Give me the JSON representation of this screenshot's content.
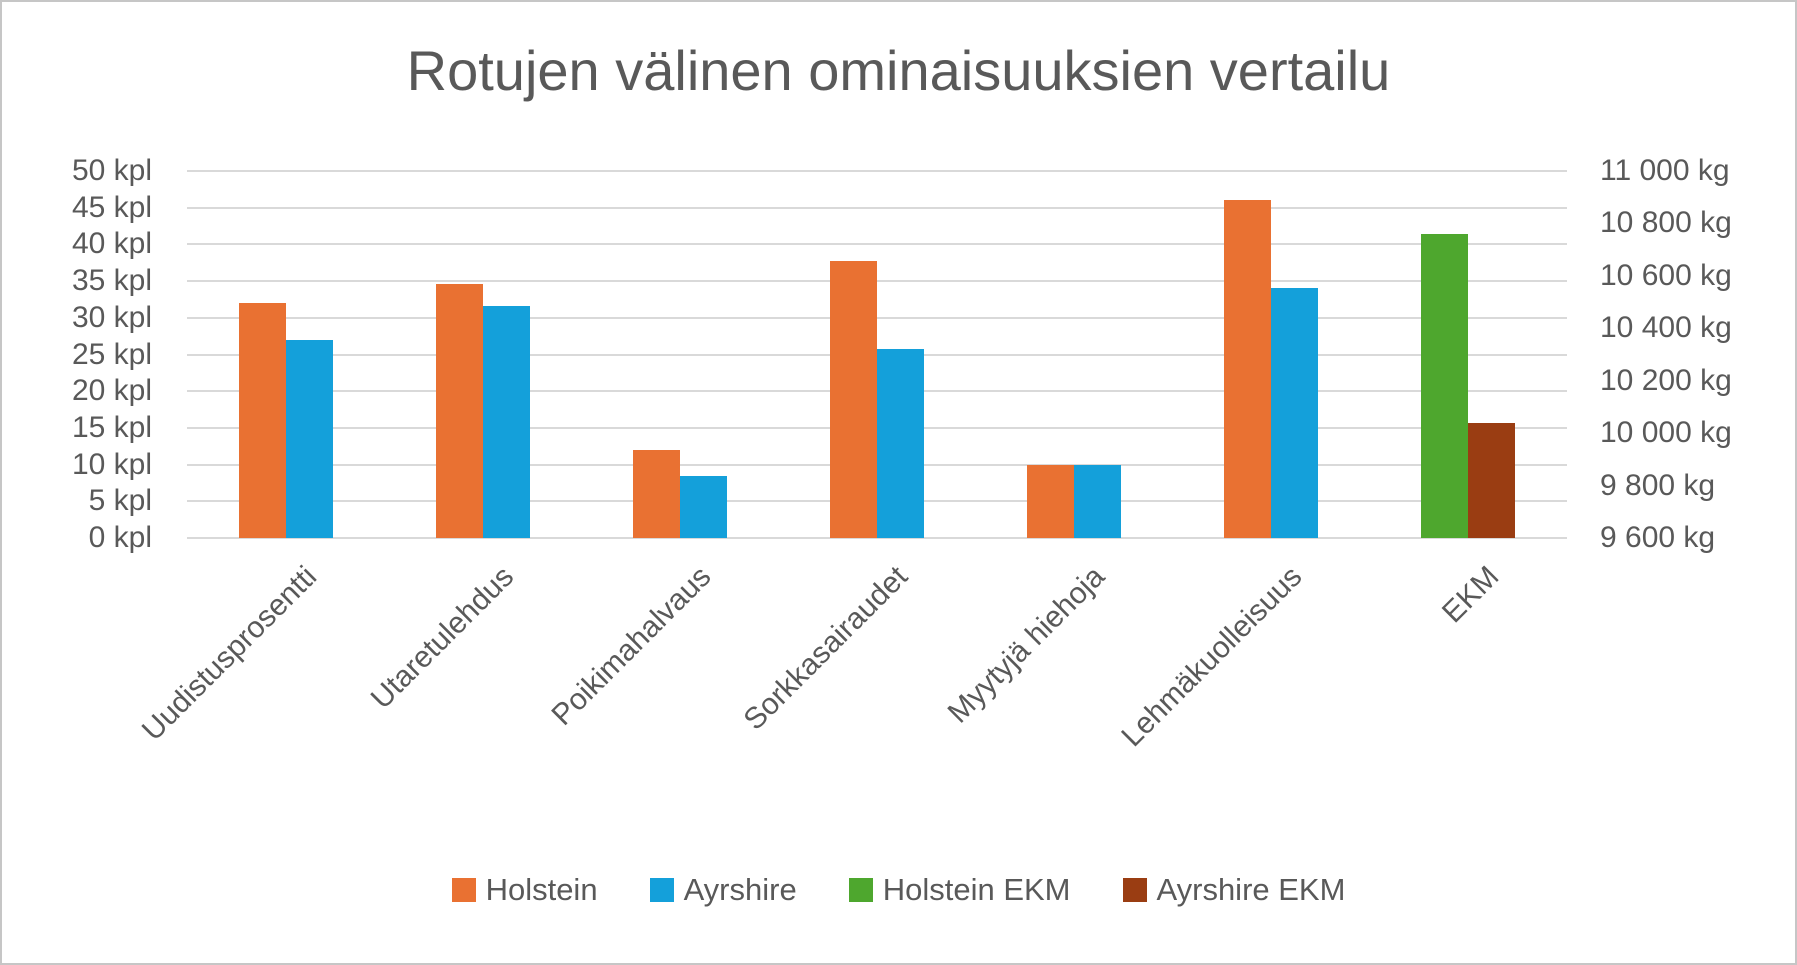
{
  "chart_data": {
    "type": "bar",
    "title": "Rotujen välinen ominaisuuksien vertailu",
    "categories": [
      "Uudistusprosentti",
      "Utaretulehdus",
      "Poikimahalvaus",
      "Sorkkasairaudet",
      "Myytyjä hiehoja",
      "Lehmäkuolleisuus",
      "EKM"
    ],
    "series": [
      {
        "name": "Holstein",
        "axis": "left",
        "color": "#E97132",
        "values": [
          32,
          34.6,
          12,
          37.7,
          10,
          46,
          null
        ]
      },
      {
        "name": "Ayrshire",
        "axis": "left",
        "color": "#14A0DA",
        "values": [
          27,
          31.6,
          8.5,
          25.8,
          10,
          34,
          null
        ]
      },
      {
        "name": "Holstein EKM",
        "axis": "right",
        "color": "#4EA72E",
        "values": [
          null,
          null,
          null,
          null,
          null,
          null,
          10760
        ]
      },
      {
        "name": "Ayrshire EKM",
        "axis": "right",
        "color": "#9A3D12",
        "values": [
          null,
          null,
          null,
          null,
          null,
          null,
          10040
        ]
      }
    ],
    "left_axis": {
      "unit": "kpl",
      "min": 0,
      "max": 50,
      "ticks": [
        "50 kpl",
        "45 kpl",
        "40 kpl",
        "35 kpl",
        "30 kpl",
        "25 kpl",
        "20 kpl",
        "15 kpl",
        "10 kpl",
        "5 kpl",
        "0 kpl"
      ]
    },
    "right_axis": {
      "unit": "kg",
      "min": 9600,
      "max": 11000,
      "ticks": [
        "11 000 kg",
        "10 800 kg",
        "10 600 kg",
        "10 400 kg",
        "10 200 kg",
        "10 000 kg",
        "9 800 kg",
        "9 600 kg"
      ]
    },
    "grid": true,
    "legend_position": "bottom",
    "style": {
      "text_color": "#595959",
      "gridline_color": "#D9D9D9",
      "background": "#FFFFFF",
      "frame_border": "#C6C6C6"
    }
  }
}
